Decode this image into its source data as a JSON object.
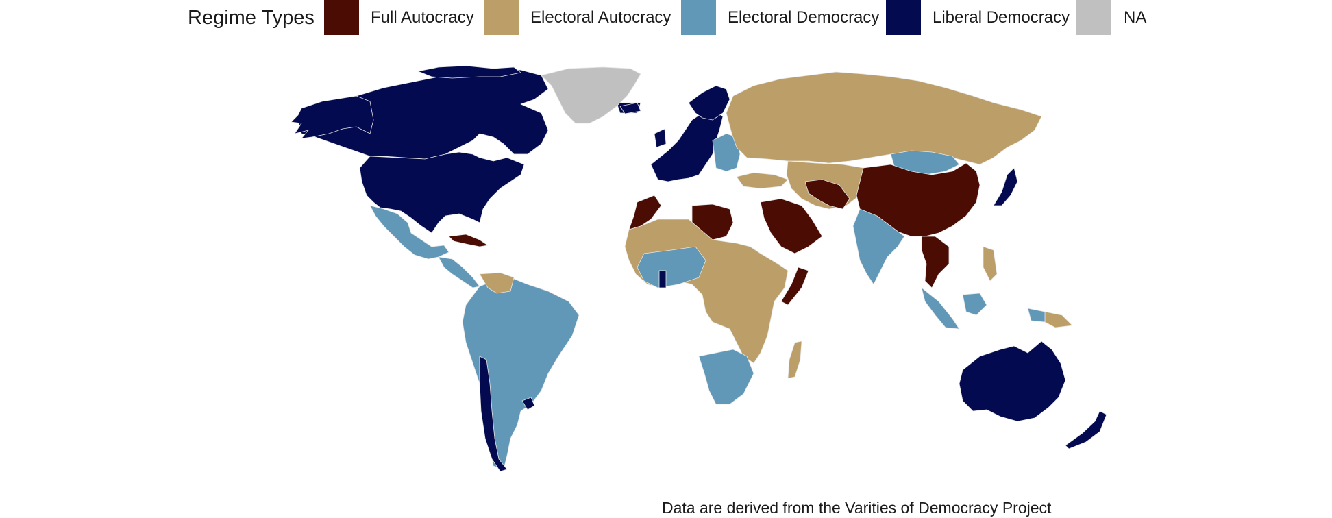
{
  "legend": {
    "title": "Regime Types",
    "items": [
      {
        "key": "full_autocracy",
        "label": "Full Autocracy",
        "color": "#4a0c03"
      },
      {
        "key": "electoral_autocracy",
        "label": "Electoral Autocracy",
        "color": "#bc9e68"
      },
      {
        "key": "electoral_democracy",
        "label": "Electoral Democracy",
        "color": "#6198b8"
      },
      {
        "key": "liberal_democracy",
        "label": "Liberal Democracy",
        "color": "#030a4f"
      },
      {
        "key": "na",
        "label": "NA",
        "color": "#c0c0c0"
      }
    ]
  },
  "caption": "Data are derived from the Varities of Democracy Project",
  "map": {
    "background": "#ffffff",
    "border_color": "#e6e6e6"
  }
}
